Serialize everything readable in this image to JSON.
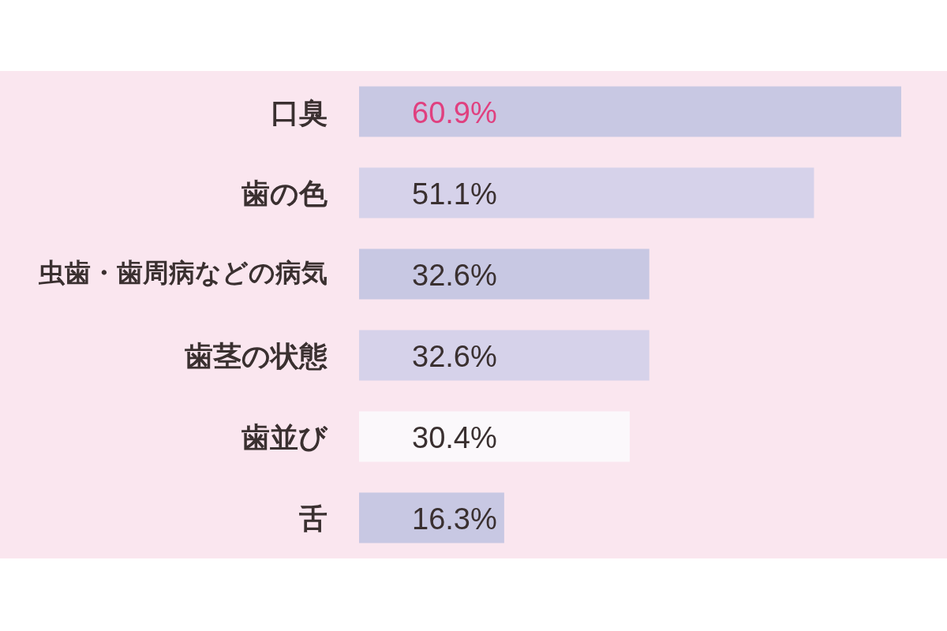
{
  "chart_data": {
    "type": "bar",
    "orientation": "horizontal",
    "categories": [
      "口臭",
      "歯の色",
      "虫歯・歯周病などの病気",
      "歯茎の状態",
      "歯並び",
      "舌"
    ],
    "values": [
      60.9,
      51.1,
      32.6,
      32.6,
      30.4,
      16.3
    ],
    "value_labels": [
      "60.9%",
      "51.1%",
      "32.6%",
      "32.6%",
      "30.4%",
      "16.3%"
    ],
    "colors": [
      "#c8c8e3",
      "#d6d2ea",
      "#c8c8e3",
      "#d6d2ea",
      "#fbf8fb",
      "#c8c8e3"
    ]
  }
}
